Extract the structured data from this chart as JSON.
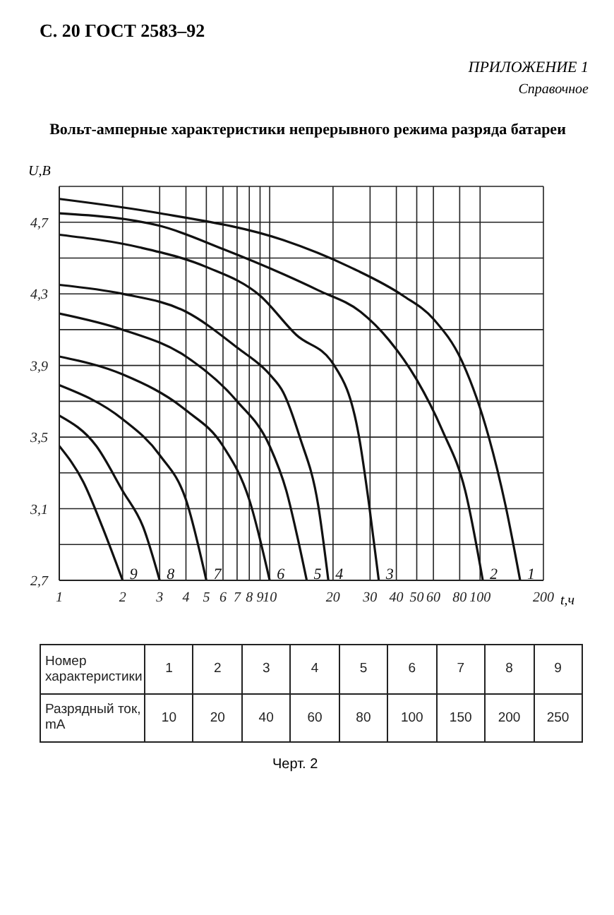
{
  "chart_data": {
    "type": "line",
    "title": "Вольт-амперные характеристики непрерывного режима разряда батареи",
    "xlabel": "t,ч",
    "ylabel": "U,В",
    "log": "x",
    "grid": true,
    "legend": false,
    "marker": "none",
    "line_style": "solid",
    "xlim": [
      1,
      200
    ],
    "xticks": [
      1,
      2,
      3,
      4,
      5,
      6,
      7,
      8,
      9,
      10,
      20,
      30,
      40,
      50,
      60,
      80,
      100,
      200
    ],
    "ylim": [
      2.7,
      4.9
    ],
    "yticks": [
      {
        "value": 2.7,
        "label": "2,7"
      },
      {
        "value": 2.9,
        "label": null
      },
      {
        "value": 3.1,
        "label": "3,1"
      },
      {
        "value": 3.3,
        "label": null
      },
      {
        "value": 3.5,
        "label": "3,5"
      },
      {
        "value": 3.7,
        "label": null
      },
      {
        "value": 3.9,
        "label": "3,9"
      },
      {
        "value": 4.1,
        "label": null
      },
      {
        "value": 4.3,
        "label": "4,3"
      },
      {
        "value": 4.5,
        "label": null
      },
      {
        "value": 4.7,
        "label": "4,7"
      },
      {
        "value": 4.9,
        "label": null
      }
    ],
    "series": [
      {
        "name": "1",
        "color": "#111111",
        "x": [
          1,
          3,
          11.6,
          24,
          43,
          60,
          83,
          110,
          132,
          155
        ],
        "values": [
          4.83,
          4.75,
          4.6,
          4.45,
          4.29,
          4.16,
          3.91,
          3.5,
          3.12,
          2.7
        ]
      },
      {
        "name": "2",
        "color": "#111111",
        "x": [
          1,
          3,
          6,
          11.6,
          17,
          27,
          37,
          50,
          66,
          85,
          103
        ],
        "values": [
          4.75,
          4.68,
          4.55,
          4.41,
          4.32,
          4.2,
          4.04,
          3.82,
          3.54,
          3.2,
          2.7
        ]
      },
      {
        "name": "3",
        "color": "#111111",
        "x": [
          1,
          2.4,
          5,
          9,
          13.4,
          20,
          26.6,
          29.7,
          33
        ],
        "values": [
          4.63,
          4.56,
          4.45,
          4.29,
          4.07,
          3.91,
          3.5,
          3.12,
          2.7
        ]
      },
      {
        "name": "4",
        "color": "#111111",
        "x": [
          1,
          2,
          4,
          7,
          10,
          11.6,
          13.9,
          17,
          19
        ],
        "values": [
          4.35,
          4.3,
          4.2,
          4,
          3.85,
          3.75,
          3.5,
          3.12,
          2.7
        ]
      },
      {
        "name": "5",
        "color": "#111111",
        "x": [
          1,
          2,
          4,
          7,
          10,
          12,
          13.5,
          15
        ],
        "values": [
          4.19,
          4.1,
          3.95,
          3.7,
          3.45,
          3.2,
          2.95,
          2.7
        ]
      },
      {
        "name": "6",
        "color": "#111111",
        "x": [
          1,
          2,
          4,
          6,
          8,
          10
        ],
        "values": [
          3.95,
          3.85,
          3.65,
          3.45,
          3.15,
          2.7
        ]
      },
      {
        "name": "7",
        "color": "#111111",
        "x": [
          1,
          2,
          3,
          4,
          5
        ],
        "values": [
          3.79,
          3.6,
          3.4,
          3.15,
          2.7
        ]
      },
      {
        "name": "8",
        "color": "#111111",
        "x": [
          1,
          1.5,
          2,
          2.5,
          3
        ],
        "values": [
          3.62,
          3.45,
          3.2,
          3,
          2.7
        ]
      },
      {
        "name": "9",
        "color": "#111111",
        "x": [
          1,
          1.3,
          1.6,
          2
        ],
        "values": [
          3.45,
          3.25,
          3,
          2.7
        ]
      }
    ],
    "annotations": [
      "С. 20 ГОСТ 2583–92",
      "ПРИЛОЖЕНИЕ 1",
      "Справочное",
      "Номер характеристики",
      "Разрядный ток, mA",
      "10",
      "20",
      "40",
      "60",
      "80",
      "100",
      "150",
      "200",
      "250",
      "Черт. 2"
    ]
  }
}
